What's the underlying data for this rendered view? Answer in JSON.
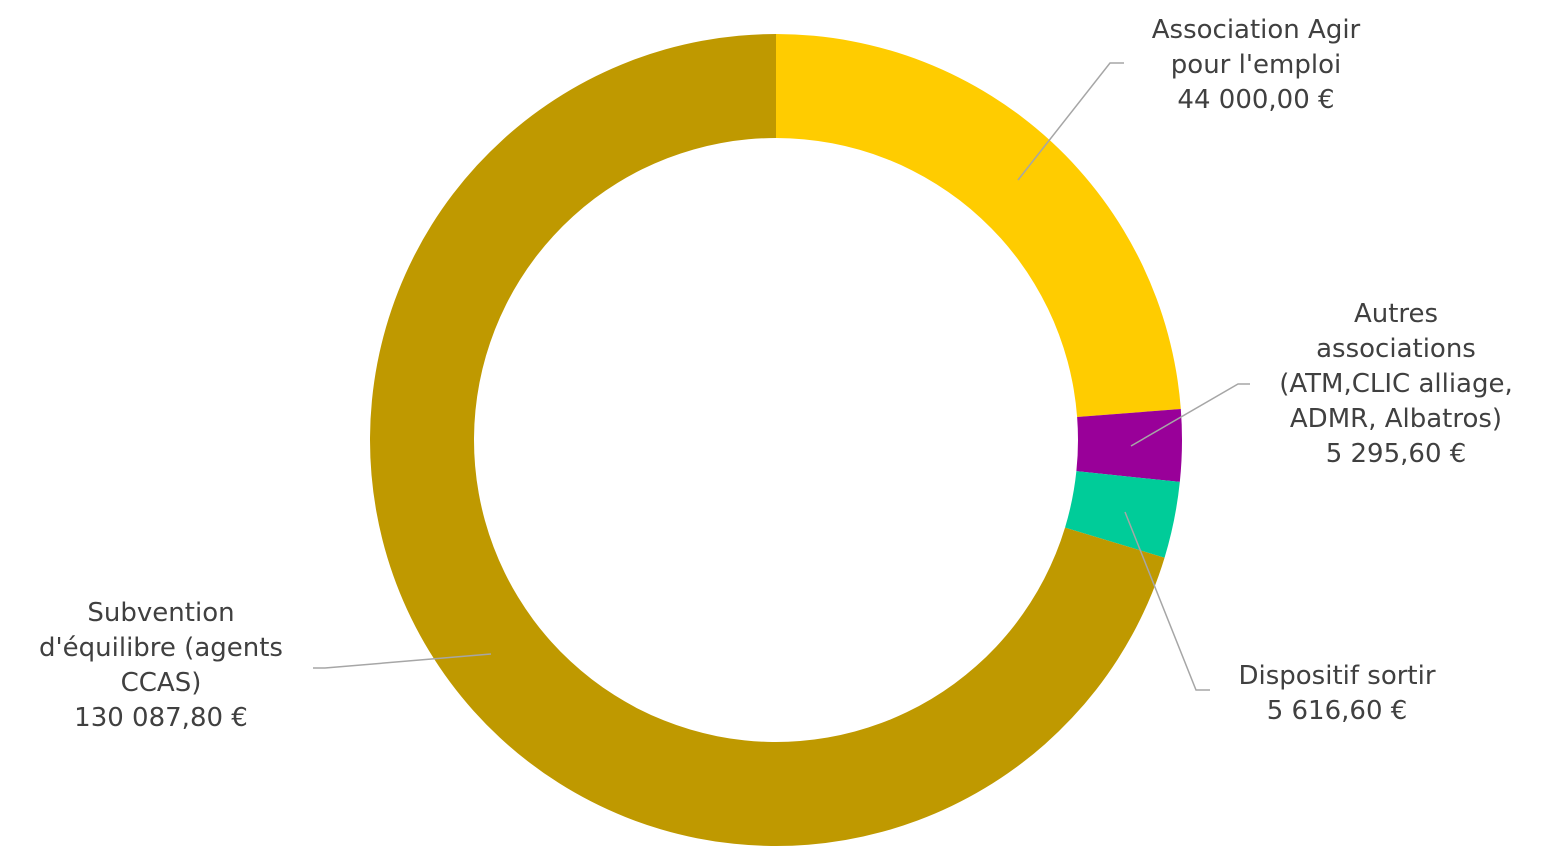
{
  "chart_data": {
    "type": "pie",
    "variant": "donut",
    "title": "",
    "slices": [
      {
        "label_lines": [
          "Association Agir",
          "pour l'emploi"
        ],
        "value_text": "44 000,00 €",
        "value": 44000.0,
        "color": "#ffcc00"
      },
      {
        "label_lines": [
          "Autres",
          "associations",
          "(ATM,CLIC alliage,",
          "ADMR, Albatros)"
        ],
        "value_text": "5 295,60 €",
        "value": 5295.6,
        "color": "#990099"
      },
      {
        "label_lines": [
          "Dispositif sortir"
        ],
        "value_text": "5 616,60 €",
        "value": 5616.6,
        "color": "#00cc99"
      },
      {
        "label_lines": [
          "Subvention",
          "d'équilibre (agents",
          "CCAS)"
        ],
        "value_text": "130 087,80 €",
        "value": 130087.8,
        "color": "#bf9900"
      }
    ],
    "start_angle": "12 o'clock",
    "direction": "clockwise",
    "labels": "outside with leader lines",
    "legend": "none"
  }
}
